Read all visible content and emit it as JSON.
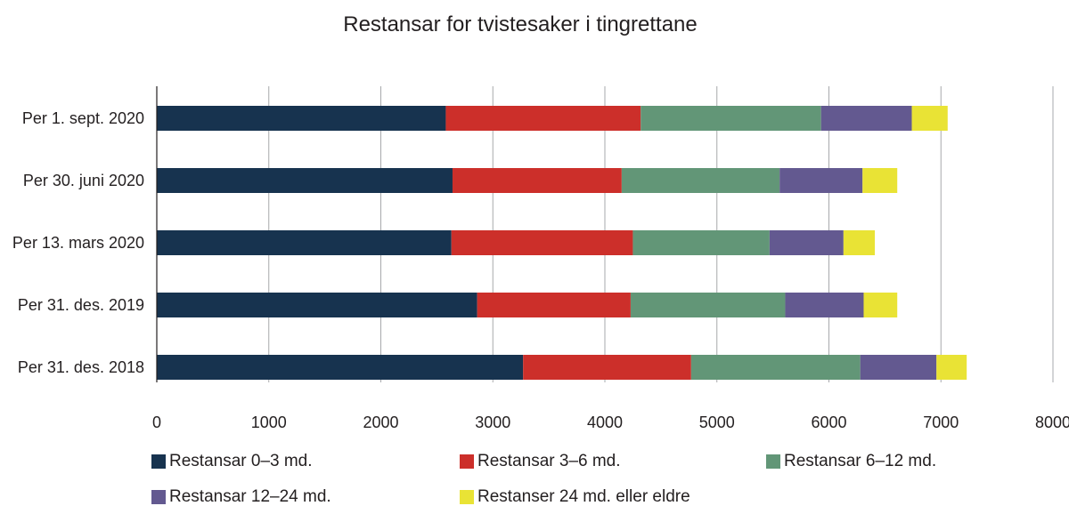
{
  "chart_data": {
    "type": "bar",
    "orientation": "horizontal",
    "stacked": true,
    "title": "Restansar for tvistesaker i tingrettane",
    "categories": [
      "Per 1. sept. 2020",
      "Per 30. juni 2020",
      "Per 13. mars 2020",
      "Per 31. des. 2019",
      "Per 31. des. 2018"
    ],
    "series": [
      {
        "name": "Restansar 0–3 md.",
        "color": "#17334f",
        "values": [
          2580,
          2640,
          2630,
          2860,
          3270
        ]
      },
      {
        "name": "Restansar  3–6 md.",
        "color": "#cc2f2a",
        "values": [
          1740,
          1510,
          1620,
          1370,
          1500
        ]
      },
      {
        "name": "Restansar  6–12 md.",
        "color": "#629677",
        "values": [
          1610,
          1410,
          1220,
          1380,
          1510
        ]
      },
      {
        "name": "Restansar 12–24 md.",
        "color": "#635990",
        "values": [
          810,
          740,
          660,
          700,
          680
        ]
      },
      {
        "name": "Restanser 24 md. eller eldre",
        "color": "#e9e335",
        "values": [
          320,
          310,
          280,
          300,
          270
        ]
      }
    ],
    "xlim": [
      0,
      8000
    ],
    "xticks": [
      "0",
      "1000",
      "2000",
      "3000",
      "4000",
      "5000",
      "6000",
      "7000",
      "8000"
    ],
    "grid": true,
    "legend_position": "bottom"
  }
}
